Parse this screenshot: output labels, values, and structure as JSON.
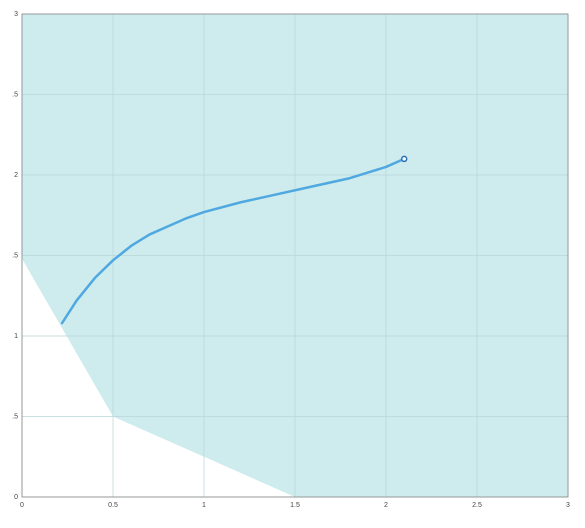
{
  "chart_data": {
    "type": "line",
    "x": [
      0.22,
      0.3,
      0.4,
      0.5,
      0.6,
      0.7,
      0.8,
      0.9,
      1.0,
      1.2,
      1.4,
      1.6,
      1.8,
      2.0,
      2.1
    ],
    "series": [
      {
        "color": "#4fa8e0",
        "values": [
          1.08,
          1.22,
          1.36,
          1.47,
          1.56,
          1.63,
          1.68,
          1.73,
          1.77,
          1.83,
          1.88,
          1.93,
          1.98,
          2.05,
          2.1
        ]
      }
    ],
    "marker": {
      "x": 2.1,
      "y": 2.1,
      "color": "#2a6fb5"
    },
    "region": {
      "x": [
        0,
        0.5,
        1.5,
        3,
        3,
        0
      ],
      "y": [
        1.48,
        0.5,
        0,
        0,
        3,
        3
      ],
      "color": "#ceeced"
    },
    "xlim": [
      0,
      3
    ],
    "ylim": [
      0,
      3
    ],
    "xticks": [
      0,
      0.5,
      1,
      1.5,
      2,
      2.5,
      3
    ],
    "yticks": [
      0,
      {
        "value": 0.5,
        "label": ".5"
      },
      1,
      {
        "value": 1.5,
        "label": ".5"
      },
      2,
      {
        "value": 2.5,
        "label": ".5"
      },
      3
    ],
    "grid": true
  }
}
